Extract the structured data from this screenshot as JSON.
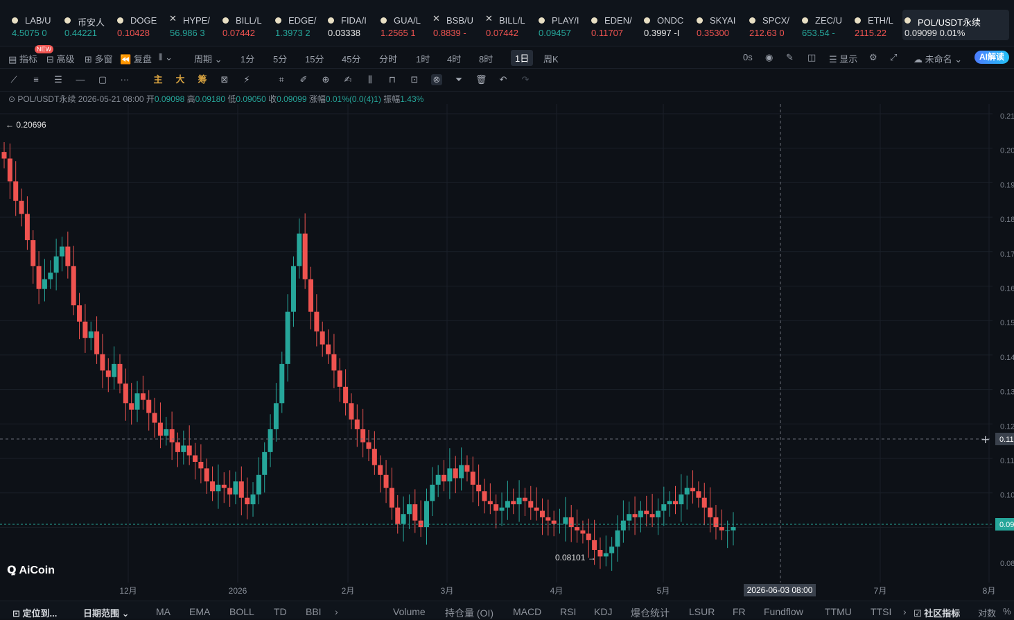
{
  "tickers": [
    {
      "name": "LAB/U",
      "price": "4.5075 0",
      "dir": "up",
      "icon": "dot"
    },
    {
      "name": "币安人",
      "price": "0.44221",
      "dir": "up",
      "icon": "dot"
    },
    {
      "name": "DOGE",
      "price": "0.10428",
      "dir": "dn",
      "icon": "dot"
    },
    {
      "name": "HYPE/",
      "price": "56.986 3",
      "dir": "up",
      "icon": "x"
    },
    {
      "name": "BILL/L",
      "price": "0.07442",
      "dir": "dn",
      "icon": "dot"
    },
    {
      "name": "EDGE/",
      "price": "1.3973 2",
      "dir": "up",
      "icon": "dot"
    },
    {
      "name": "FIDA/I",
      "price": "0.03338",
      "dir": "wt",
      "icon": "dot"
    },
    {
      "name": "GUA/L",
      "price": "1.2565 1",
      "dir": "dn",
      "icon": "dot"
    },
    {
      "name": "BSB/U",
      "price": "0.8839 -",
      "dir": "dn",
      "icon": "x"
    },
    {
      "name": "BILL/L",
      "price": "0.07442",
      "dir": "dn",
      "icon": "x"
    },
    {
      "name": "PLAY/I",
      "price": "0.09457",
      "dir": "up",
      "icon": "dot"
    },
    {
      "name": "EDEN/",
      "price": "0.11707",
      "dir": "dn",
      "icon": "dot"
    },
    {
      "name": "ONDC",
      "price": "0.3997 -I",
      "dir": "wt",
      "icon": "dot"
    },
    {
      "name": "SKYAI",
      "price": "0.35300",
      "dir": "dn",
      "icon": "dot"
    },
    {
      "name": "SPCX/",
      "price": "212.63 0",
      "dir": "dn",
      "icon": "dot"
    },
    {
      "name": "ZEC/U",
      "price": "653.54 -",
      "dir": "up",
      "icon": "dot"
    },
    {
      "name": "ETH/L",
      "price": "2115.22",
      "dir": "dn",
      "icon": "dot"
    }
  ],
  "active_ticker": {
    "name": "POL/USDT永续",
    "price": "0.09099 0.01%"
  },
  "toolbar": {
    "indicator": "指标",
    "new_badge": "NEW",
    "advanced": "高级",
    "multi": "多窗",
    "replay": "复盘",
    "period": "周期",
    "intervals": [
      "1分",
      "5分",
      "15分",
      "45分",
      "分时",
      "1时",
      "4时",
      "8时",
      "1日",
      "周K"
    ],
    "selected_interval": "1日",
    "zero_s": "0s",
    "display": "显示",
    "unnamed": "未命名",
    "ai": "AI解读"
  },
  "drawing_tools": {
    "main": "主",
    "big": "大",
    "chip": "筹"
  },
  "info": {
    "symbol": "POL/USDT永续",
    "date": "2026-05-21 08:00",
    "open_label": "开",
    "open": "0.09098",
    "high_label": "高",
    "high": "0.09180",
    "low_label": "低",
    "low": "0.09050",
    "close_label": "收",
    "close": "0.09099",
    "change_label": "涨幅",
    "change": "0.01%(0.0(4)1)",
    "amp_label": "振幅",
    "amp": "1.43%"
  },
  "chart_data": {
    "type": "candlestick",
    "high_marker": "← 0.20696",
    "low_marker": "0.08101 →",
    "crosshair_date": "2026-06-03 08:00",
    "crosshair_price": "0.11",
    "last_price_tag": "0.09",
    "x_ticks": [
      "12月",
      "2026",
      "2月",
      "3月",
      "4月",
      "5月",
      "7月",
      "8月"
    ],
    "y_ticks": [
      "0.21",
      "0.20",
      "0.19",
      "0.18",
      "0.17",
      "0.16",
      "0.15",
      "0.14",
      "0.13",
      "0.12",
      "0.11",
      "0.10",
      "0.08"
    ],
    "ohlc_close": [
      0.205,
      0.198,
      0.192,
      0.188,
      0.18,
      0.172,
      0.165,
      0.168,
      0.17,
      0.175,
      0.178,
      0.172,
      0.16,
      0.155,
      0.15,
      0.152,
      0.145,
      0.14,
      0.138,
      0.142,
      0.136,
      0.13,
      0.128,
      0.133,
      0.131,
      0.127,
      0.124,
      0.12,
      0.122,
      0.118,
      0.115,
      0.117,
      0.114,
      0.112,
      0.11,
      0.106,
      0.103,
      0.105,
      0.104,
      0.102,
      0.106,
      0.101,
      0.099,
      0.102,
      0.108,
      0.115,
      0.122,
      0.13,
      0.142,
      0.158,
      0.172,
      0.182,
      0.168,
      0.158,
      0.152,
      0.148,
      0.145,
      0.14,
      0.135,
      0.13,
      0.125,
      0.122,
      0.118,
      0.116,
      0.111,
      0.108,
      0.104,
      0.098,
      0.093,
      0.096,
      0.099,
      0.094,
      0.092,
      0.1,
      0.105,
      0.108,
      0.106,
      0.11,
      0.107,
      0.111,
      0.109,
      0.105,
      0.103,
      0.1,
      0.099,
      0.097,
      0.098,
      0.1,
      0.099,
      0.101,
      0.1,
      0.098,
      0.097,
      0.095,
      0.094,
      0.093,
      0.093,
      0.095,
      0.092,
      0.091,
      0.09,
      0.088,
      0.085,
      0.083,
      0.084,
      0.086,
      0.091,
      0.094,
      0.096,
      0.095,
      0.097,
      0.096,
      0.095,
      0.097,
      0.099,
      0.1,
      0.099,
      0.102,
      0.104,
      0.103,
      0.101,
      0.098,
      0.095,
      0.092,
      0.091,
      0.091,
      0.092
    ]
  },
  "bottom": {
    "locate": "定位到...",
    "date_range": "日期范围",
    "indicators": [
      "MA",
      "EMA",
      "BOLL",
      "TD",
      "BBI"
    ],
    "sub_indicators": [
      "Volume",
      "持仓量 (OI)",
      "MACD",
      "RSI",
      "KDJ",
      "爆仓统计",
      "LSUR",
      "FR",
      "Fundflow",
      "TTMU",
      "TTSI"
    ],
    "community": "社区指标",
    "log": "对数",
    "pct": "%"
  },
  "logo": "AiCoin",
  "colors": {
    "up": "#26a69a",
    "down": "#ef5350",
    "bg": "#0d1117"
  }
}
